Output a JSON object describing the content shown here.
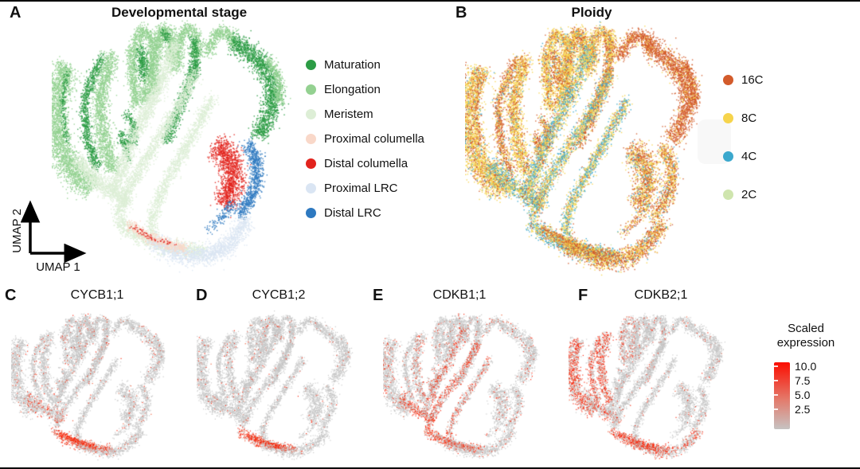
{
  "panels": {
    "a": {
      "label": "A",
      "title": "Developmental stage"
    },
    "b": {
      "label": "B",
      "title": "Ploidy"
    },
    "c": {
      "label": "C",
      "title": "CYCB1;1"
    },
    "d": {
      "label": "D",
      "title": "CYCB1;2"
    },
    "e": {
      "label": "E",
      "title": "CDKB1;1"
    },
    "f": {
      "label": "F",
      "title": "CDKB2;1"
    }
  },
  "axes": {
    "x": "UMAP 1",
    "y": "UMAP 2"
  },
  "legend_dev_stage": {
    "items": [
      {
        "label": "Maturation",
        "color": "#2c9c45"
      },
      {
        "label": "Elongation",
        "color": "#94d191"
      },
      {
        "label": "Meristem",
        "color": "#ddeed6"
      },
      {
        "label": "Proximal columella",
        "color": "#f9d8c9"
      },
      {
        "label": "Distal columella",
        "color": "#e2231d"
      },
      {
        "label": "Proximal LRC",
        "color": "#dae5f3"
      },
      {
        "label": "Distal LRC",
        "color": "#2e79c0"
      }
    ]
  },
  "legend_ploidy": {
    "items": [
      {
        "label": "16C",
        "color": "#d35b2b"
      },
      {
        "label": "8C",
        "color": "#f6d44c"
      },
      {
        "label": "4C",
        "color": "#3ba8cd"
      },
      {
        "label": "2C",
        "color": "#cfe5ae"
      }
    ]
  },
  "colorbar": {
    "title_line1": "Scaled",
    "title_line2": "expression",
    "ticks": [
      "10.0",
      "7.5",
      "5.0",
      "2.5"
    ],
    "gradient_top": "#fb0d00",
    "gradient_bottom": "#c6c3c2"
  },
  "chart_data": {
    "type": "scatter",
    "subtype": "umap-embedding",
    "title": "Single-cell UMAP panels of root developmental stage, ploidy and cell-cycle gene expression",
    "panels": [
      {
        "id": "a",
        "canvas": "umap-a",
        "mode": "cluster",
        "title": "Developmental stage",
        "legend": [
          "Maturation",
          "Elongation",
          "Meristem",
          "Proximal columella",
          "Distal columella",
          "Proximal LRC",
          "Distal LRC"
        ]
      },
      {
        "id": "b",
        "canvas": "umap-b",
        "mode": "ploidy",
        "title": "Ploidy",
        "legend": [
          "16C",
          "8C",
          "4C",
          "2C"
        ]
      },
      {
        "id": "c",
        "canvas": "umap-c",
        "mode": "expr",
        "expr": "c",
        "title": "CYCB1;1"
      },
      {
        "id": "d",
        "canvas": "umap-d",
        "mode": "expr",
        "expr": "d",
        "title": "CYCB1;2"
      },
      {
        "id": "e",
        "canvas": "umap-e",
        "mode": "expr",
        "expr": "e",
        "title": "CDKB1;1"
      },
      {
        "id": "f",
        "canvas": "umap-f",
        "mode": "expr",
        "expr": "f",
        "title": "CDKB2;1"
      }
    ],
    "cluster_colors": {
      "mat": "#2c9c45",
      "elo": "#94d191",
      "mer": "#ddeed6",
      "pcol": "#f9d8c9",
      "dcol": "#e2231d",
      "plrc": "#dae5f3",
      "dlrc": "#2e79c0"
    },
    "ploidy_colors": {
      "16C": "#d35b2b",
      "8C": "#f6d44c",
      "4C": "#3ba8cd",
      "2C": "#cfe5ae"
    },
    "ploidy_mixes": {
      "elo": [
        [
          "8C",
          0.64
        ],
        [
          "16C",
          0.29
        ],
        [
          "4C",
          0.07
        ]
      ],
      "mat": [
        [
          "16C",
          0.58
        ],
        [
          "8C",
          0.36
        ],
        [
          "4C",
          0.06
        ]
      ],
      "mer": [
        [
          "8C",
          0.42
        ],
        [
          "4C",
          0.36
        ],
        [
          "16C",
          0.12
        ],
        [
          "2C",
          0.1
        ]
      ],
      "bot": [
        [
          "16C",
          0.48
        ],
        [
          "8C",
          0.44
        ],
        [
          "4C",
          0.08
        ]
      ],
      "m16": [
        [
          "16C",
          0.85
        ],
        [
          "8C",
          0.15
        ]
      ],
      "cyl": [
        [
          "4C",
          0.45
        ],
        [
          "8C",
          0.35
        ],
        [
          "16C",
          0.14
        ],
        [
          "2C",
          0.06
        ]
      ]
    },
    "group_mix": {
      "elo": "elo",
      "mat": "mat",
      "mer": "mer",
      "dcol": "bot",
      "dlrc": "bot",
      "plrc": "bot",
      "pcol": "bot"
    },
    "expression_colors": {
      "low": "#c5c5c5",
      "high": "#fa1e02",
      "mid": "#f0512a"
    },
    "expression": {
      "c": {
        "base": 0.055,
        "hot": {
          "20": 0.8,
          "24": 0.85,
          "25": 0.95,
          "4": 0.25
        }
      },
      "d": {
        "base": 0.03,
        "hot": {
          "20": 0.7,
          "24": 0.85,
          "25": 0.95
        }
      },
      "e": {
        "base": 0.07,
        "hot": {
          "17": 0.35,
          "18": 0.42,
          "19": 0.3,
          "20": 0.62,
          "4": 0.5,
          "24": 0.55,
          "0": 0.12,
          "2": 0.18,
          "15": 0.3,
          "16": 0.4
        }
      },
      "f": {
        "base": 0.05,
        "hot": {
          "0": 0.5,
          "1": 0.45,
          "2": 0.55,
          "3": 0.5,
          "5": 0.22,
          "20": 0.72,
          "23": 0.32,
          "24": 0.65,
          "25": 0.85,
          "4": 0.3
        }
      }
    },
    "colorbar": {
      "title": "Scaled expression",
      "ticks": [
        10.0,
        7.5,
        5.0,
        2.5
      ],
      "top_color": "#fb0d00",
      "bottom_color": "#c6c3c2"
    },
    "skeleton": {
      "strokes": [
        {
          "g": "elo",
          "w": 10,
          "p": [
            [
              6,
              18
            ],
            [
              1,
              30
            ],
            [
              2,
              45
            ],
            [
              7,
              57
            ],
            [
              16,
              63
            ]
          ]
        },
        {
          "g": "mat",
          "w": 4,
          "p": [
            [
              20,
              15
            ],
            [
              13,
              30
            ],
            [
              14,
              45
            ],
            [
              18,
              56
            ]
          ]
        },
        {
          "g": "elo",
          "w": 6.5,
          "p": [
            [
              24,
              14
            ],
            [
              19,
              30
            ],
            [
              21,
              47
            ],
            [
              25,
              57
            ]
          ]
        },
        {
          "g": "mat",
          "w": 2.5,
          "d": 0.5,
          "p": [
            [
              6,
              20
            ],
            [
              4,
              34
            ],
            [
              6,
              46
            ]
          ]
        },
        {
          "g": "mer",
          "w": 7,
          "p": [
            [
              10,
              53
            ],
            [
              18,
              61
            ],
            [
              27,
              66
            ],
            [
              31,
              69
            ]
          ]
        },
        {
          "g": "elo",
          "w": 5,
          "p": [
            [
              34,
              33
            ],
            [
              32,
              15
            ],
            [
              36,
              5
            ],
            [
              41,
              8
            ],
            [
              40,
              19
            ],
            [
              37,
              32
            ]
          ]
        },
        {
          "g": "mat",
          "w": 4.5,
          "p": [
            [
              36,
              12
            ],
            [
              37,
              23
            ]
          ]
        },
        {
          "g": "elo",
          "w": 5,
          "p": [
            [
              41,
              28
            ],
            [
              42,
              12
            ],
            [
              45,
              4
            ],
            [
              48,
              6
            ],
            [
              48,
              16
            ]
          ]
        },
        {
          "g": "mat",
          "w": 3.5,
          "p": [
            [
              45,
              6
            ],
            [
              47,
              9
            ]
          ]
        },
        {
          "g": "elo",
          "w": 5,
          "p": [
            [
              50,
              20
            ],
            [
              52,
              6
            ],
            [
              56,
              4
            ],
            [
              59,
              8
            ],
            [
              58,
              15
            ]
          ]
        },
        {
          "g": "mat",
          "w": 4,
          "p": [
            [
              57,
              8
            ],
            [
              58,
              14
            ],
            [
              57,
              22
            ]
          ]
        },
        {
          "g": "elo",
          "w": 5,
          "bm": "m16",
          "p": [
            [
              62,
              14
            ],
            [
              67,
              6
            ],
            [
              72,
              6
            ],
            [
              74,
              11
            ]
          ]
        },
        {
          "g": "mat",
          "w": 7.5,
          "bm": "m16",
          "p": [
            [
              73,
              9
            ],
            [
              81,
              14
            ],
            [
              87,
              20
            ],
            [
              90,
              28
            ],
            [
              88,
              37
            ],
            [
              83,
              44
            ]
          ]
        },
        {
          "g": "elo",
          "w": 4,
          "bm": "m16",
          "p": [
            [
              88,
              16
            ],
            [
              92,
              24
            ],
            [
              92,
              32
            ]
          ]
        },
        {
          "g": "mat",
          "w": 4.5,
          "p": [
            [
              58,
              18
            ],
            [
              54,
              28
            ],
            [
              50,
              38
            ],
            [
              46,
              46
            ]
          ]
        },
        {
          "g": "mat",
          "w": 3.5,
          "p": [
            [
              30,
              36
            ],
            [
              33,
              40
            ],
            [
              33,
              46
            ],
            [
              29,
              47
            ],
            [
              28,
              43
            ]
          ]
        },
        {
          "g": "mat",
          "w": 2.5,
          "p": [
            [
              29,
              47
            ],
            [
              31,
              53
            ]
          ]
        },
        {
          "g": "mer",
          "w": 6,
          "p": [
            [
              50,
              10
            ],
            [
              45,
              22
            ],
            [
              39,
              34
            ],
            [
              32,
              46
            ],
            [
              28,
              57
            ],
            [
              24,
              65
            ]
          ]
        },
        {
          "g": "mer",
          "w": 5,
          "p": [
            [
              58,
              20
            ],
            [
              52,
              32
            ],
            [
              44,
              44
            ],
            [
              35,
              57
            ],
            [
              29,
              67
            ],
            [
              27,
              73
            ]
          ]
        },
        {
          "g": "mer",
          "w": 4.5,
          "p": [
            [
              65,
              30
            ],
            [
              58,
              42
            ],
            [
              50,
              55
            ],
            [
              44,
              65
            ],
            [
              40,
              75
            ],
            [
              41,
              81
            ]
          ]
        },
        {
          "g": "mer",
          "w": 5.5,
          "bm": "cyl",
          "p": [
            [
              26,
              75
            ],
            [
              32,
              80
            ],
            [
              42,
              84
            ],
            [
              52,
              86
            ],
            [
              61,
              87
            ]
          ]
        },
        {
          "g": "dcol",
          "w": 9.5,
          "p": [
            [
              66,
              48
            ],
            [
              71,
              51
            ],
            [
              74,
              57
            ],
            [
              73,
              64
            ],
            [
              69,
              69
            ]
          ]
        },
        {
          "g": "dlrc",
          "w": 5.5,
          "p": [
            [
              79,
              47
            ],
            [
              83,
              53
            ],
            [
              83,
              61
            ],
            [
              80,
              68
            ],
            [
              76,
              73
            ]
          ]
        },
        {
          "g": "plrc",
          "w": 7,
          "p": [
            [
              40,
              83
            ],
            [
              49,
              87
            ],
            [
              58,
              89
            ],
            [
              68,
              87
            ],
            [
              75,
              81
            ],
            [
              79,
              75
            ]
          ]
        },
        {
          "g": "pcol",
          "w": 4,
          "p": [
            [
              31,
              77
            ],
            [
              38,
              81
            ],
            [
              46,
              84
            ],
            [
              54,
              86
            ]
          ]
        },
        {
          "g": "dcol",
          "w": 2,
          "d": 0.4,
          "p": [
            [
              33,
              78
            ],
            [
              41,
              82
            ],
            [
              49,
              84
            ]
          ]
        },
        {
          "g": "dlrc",
          "w": 4,
          "d": 0.5,
          "p": [
            [
              73,
              69
            ],
            [
              68,
              75
            ],
            [
              63,
              79
            ]
          ]
        }
      ]
    }
  }
}
